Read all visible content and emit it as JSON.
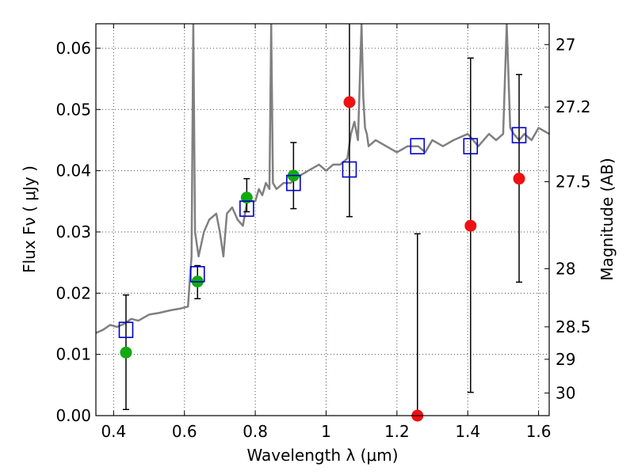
{
  "chart_data": {
    "type": "scatter",
    "xlabel": "Wavelength  λ (μm)",
    "ylabel": "Flux  Fν  ( μJy )",
    "y2label": "Magnitude (AB)",
    "xlim": [
      0.35,
      1.63
    ],
    "ylim": [
      0.0,
      0.064
    ],
    "grid": true,
    "x_ticks": [
      0.4,
      0.6,
      0.8,
      1.0,
      1.2,
      1.4,
      1.6
    ],
    "x_tick_labels": [
      "0.4",
      "0.6",
      "0.8",
      "1",
      "1.2",
      "1.4",
      "1.6"
    ],
    "y_ticks": [
      0.0,
      0.01,
      0.02,
      0.03,
      0.04,
      0.05,
      0.06
    ],
    "y_tick_labels": [
      "0.00",
      "0.01",
      "0.02",
      "0.03",
      "0.04",
      "0.05",
      "0.06"
    ],
    "mag_ticks": [
      {
        "label": "27",
        "flux": 0.0606
      },
      {
        "label": "27.2",
        "flux": 0.0504
      },
      {
        "label": "27.5",
        "flux": 0.0382
      },
      {
        "label": "28",
        "flux": 0.024
      },
      {
        "label": "28.5",
        "flux": 0.0145
      },
      {
        "label": "29",
        "flux": 0.0092
      },
      {
        "label": "30",
        "flux": 0.0037
      }
    ],
    "colors": {
      "spectrum": "#808080",
      "model_box": "#0000cc",
      "detected": "#11aa11",
      "upper": "#ee1111",
      "errorbar": "#000000"
    },
    "spectrum": {
      "x": [
        0.35,
        0.37,
        0.39,
        0.41,
        0.43,
        0.45,
        0.47,
        0.5,
        0.53,
        0.56,
        0.59,
        0.61,
        0.615,
        0.62,
        0.625,
        0.63,
        0.64,
        0.655,
        0.67,
        0.69,
        0.7,
        0.71,
        0.72,
        0.735,
        0.75,
        0.765,
        0.78,
        0.79,
        0.8,
        0.81,
        0.82,
        0.83,
        0.84,
        0.845,
        0.85,
        0.86,
        0.88,
        0.9,
        0.92,
        0.95,
        0.98,
        1.0,
        1.02,
        1.04,
        1.06,
        1.07,
        1.08,
        1.09,
        1.1,
        1.105,
        1.11,
        1.115,
        1.12,
        1.14,
        1.17,
        1.2,
        1.23,
        1.26,
        1.28,
        1.3,
        1.33,
        1.36,
        1.4,
        1.43,
        1.46,
        1.48,
        1.5,
        1.51,
        1.52,
        1.53,
        1.545,
        1.56,
        1.58,
        1.6,
        1.63
      ],
      "y": [
        0.0135,
        0.014,
        0.0148,
        0.0145,
        0.015,
        0.0158,
        0.0155,
        0.0165,
        0.0168,
        0.0172,
        0.0175,
        0.0178,
        0.022,
        0.026,
        0.064,
        0.03,
        0.026,
        0.03,
        0.032,
        0.033,
        0.03,
        0.026,
        0.033,
        0.034,
        0.032,
        0.031,
        0.036,
        0.035,
        0.035,
        0.037,
        0.036,
        0.038,
        0.037,
        0.064,
        0.038,
        0.037,
        0.038,
        0.038,
        0.039,
        0.04,
        0.041,
        0.04,
        0.041,
        0.041,
        0.042,
        0.046,
        0.048,
        0.045,
        0.064,
        0.052,
        0.047,
        0.046,
        0.044,
        0.045,
        0.044,
        0.043,
        0.044,
        0.044,
        0.043,
        0.045,
        0.044,
        0.045,
        0.046,
        0.044,
        0.046,
        0.045,
        0.046,
        0.064,
        0.047,
        0.046,
        0.045,
        0.046,
        0.045,
        0.047,
        0.046
      ]
    },
    "model_points": [
      {
        "x": 0.435,
        "y": 0.014
      },
      {
        "x": 0.637,
        "y": 0.0231
      },
      {
        "x": 0.776,
        "y": 0.0338
      },
      {
        "x": 0.908,
        "y": 0.038
      },
      {
        "x": 1.066,
        "y": 0.0402
      },
      {
        "x": 1.258,
        "y": 0.044
      },
      {
        "x": 1.408,
        "y": 0.044
      },
      {
        "x": 1.545,
        "y": 0.0458
      }
    ],
    "detections": [
      {
        "x": 0.435,
        "y": 0.0103,
        "ylo": 0.001,
        "yhi": 0.0197
      },
      {
        "x": 0.637,
        "y": 0.0219,
        "ylo": 0.0191,
        "yhi": 0.0245
      },
      {
        "x": 0.776,
        "y": 0.0356,
        "ylo": 0.0333,
        "yhi": 0.0387
      },
      {
        "x": 0.908,
        "y": 0.0392,
        "ylo": 0.0338,
        "yhi": 0.0446
      }
    ],
    "non_detections": [
      {
        "x": 1.066,
        "y": 0.0512,
        "ylo": 0.0325,
        "yhi": 0.064
      },
      {
        "x": 1.258,
        "y": 0.0,
        "ylo": 0.0,
        "yhi": 0.0297
      },
      {
        "x": 1.408,
        "y": 0.031,
        "ylo": 0.0038,
        "yhi": 0.0584
      },
      {
        "x": 1.545,
        "y": 0.0387,
        "ylo": 0.0218,
        "yhi": 0.0557
      }
    ]
  }
}
